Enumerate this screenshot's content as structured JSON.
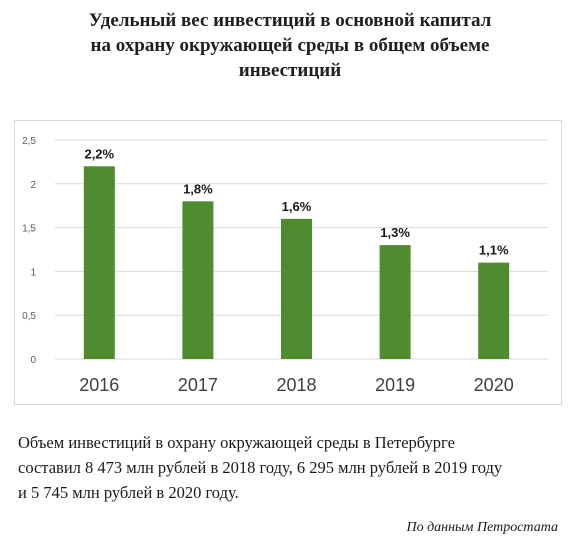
{
  "header": {
    "title_lines": [
      "Удельный вес инвестиций в основной капитал",
      "на охрану окружающей среды в общем объеме",
      "инвестиций"
    ]
  },
  "chart_data": {
    "type": "bar",
    "categories": [
      "2016",
      "2017",
      "2018",
      "2019",
      "2020"
    ],
    "values": [
      2.2,
      1.8,
      1.6,
      1.3,
      1.1
    ],
    "data_labels": [
      "2,2%",
      "1,8%",
      "1,6%",
      "1,3%",
      "1,1%"
    ],
    "yticks": [
      0,
      0.5,
      1,
      1.5,
      2,
      2.5
    ],
    "ytick_labels": [
      "0",
      "0,5",
      "1",
      "1,5",
      "2",
      "2,5"
    ],
    "ylim": [
      0,
      2.5
    ],
    "grid": true,
    "bar_color": "#4e8c2f",
    "grid_color": "#d9d9d9"
  },
  "footer": {
    "note_lines": [
      "Объем инвестиций в охрану окружающей среды в Петербурге",
      "составил 8 473 млн рублей в 2018 году, 6 295 млн рублей в 2019 году",
      "и 5 745 млн рублей в 2020 году."
    ],
    "source": "По данным Петростата"
  }
}
